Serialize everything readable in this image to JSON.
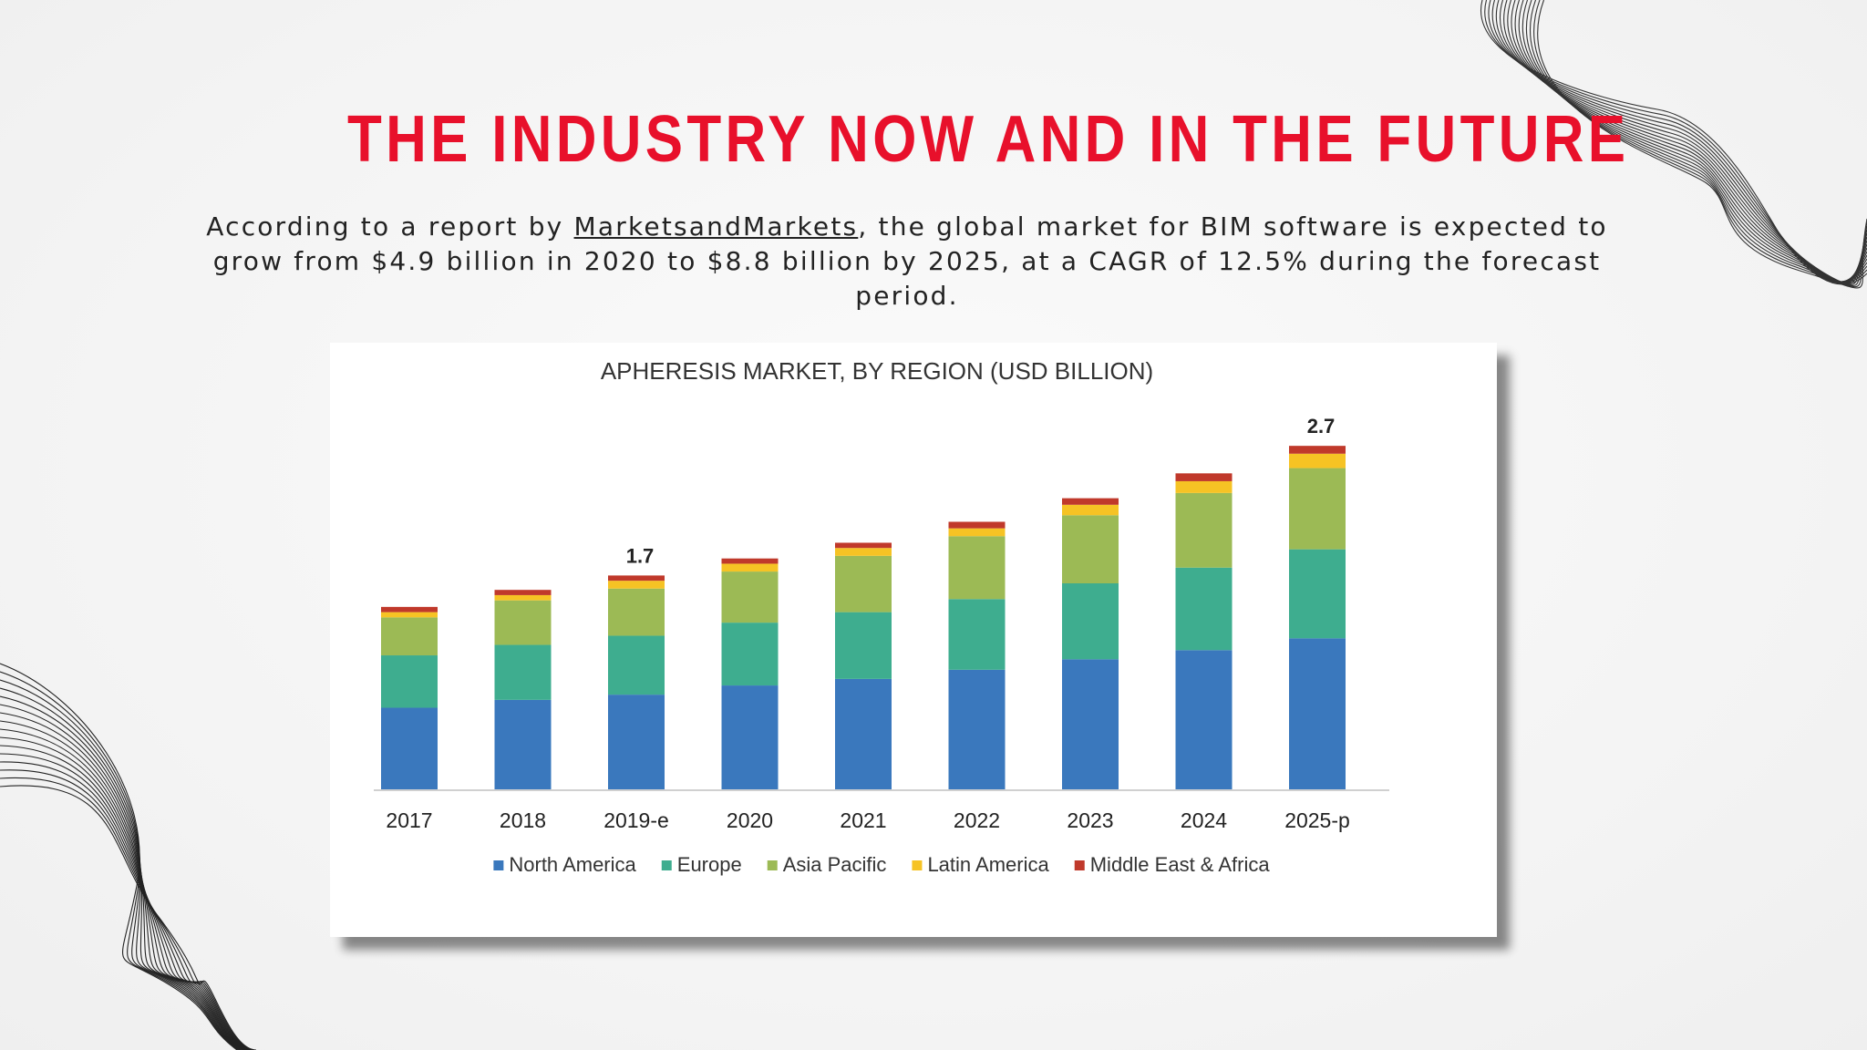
{
  "heading": "THE INDUSTRY NOW AND IN THE FUTURE",
  "intro": {
    "before_link": "According to a report by ",
    "link_text": "MarketsandMarkets",
    "after_link": ", the global market for BIM software is expected to grow from $4.9 billion in 2020 to $8.8 billion by 2025, at a CAGR of 12.5% during the forecast period."
  },
  "colors": {
    "heading": "#e8102b",
    "north_america": "#3a78bd",
    "europe": "#3ead8f",
    "asia_pacific": "#9cba55",
    "latin_america": "#f6c324",
    "middle_east_africa": "#c0392b"
  },
  "chart_data": {
    "type": "bar",
    "stacked": true,
    "title": "APHERESIS MARKET, BY REGION (USD BILLION)",
    "xlabel": "",
    "ylabel": "",
    "ylim": [
      0,
      3.0
    ],
    "grid": false,
    "legend_position": "bottom",
    "categories": [
      "2017",
      "2018",
      "2019-e",
      "2020",
      "2021",
      "2022",
      "2023",
      "2024",
      "2025-p"
    ],
    "series": [
      {
        "name": "North America",
        "color": "#3a78bd",
        "values": [
          0.63,
          0.69,
          0.73,
          0.8,
          0.85,
          0.92,
          1.0,
          1.07,
          1.16
        ]
      },
      {
        "name": "Europe",
        "color": "#3ead8f",
        "values": [
          0.4,
          0.42,
          0.45,
          0.48,
          0.51,
          0.54,
          0.58,
          0.63,
          0.68
        ]
      },
      {
        "name": "Asia Pacific",
        "color": "#9cba55",
        "values": [
          0.29,
          0.34,
          0.36,
          0.39,
          0.43,
          0.48,
          0.52,
          0.57,
          0.62
        ]
      },
      {
        "name": "Latin America",
        "color": "#f6c324",
        "values": [
          0.04,
          0.04,
          0.06,
          0.06,
          0.06,
          0.06,
          0.08,
          0.09,
          0.11
        ]
      },
      {
        "name": "Middle East & Africa",
        "color": "#c0392b",
        "values": [
          0.04,
          0.04,
          0.04,
          0.04,
          0.04,
          0.05,
          0.05,
          0.06,
          0.06
        ]
      }
    ],
    "data_labels": [
      {
        "category": "2019-e",
        "text": "1.7"
      },
      {
        "category": "2025-p",
        "text": "2.7"
      }
    ]
  }
}
